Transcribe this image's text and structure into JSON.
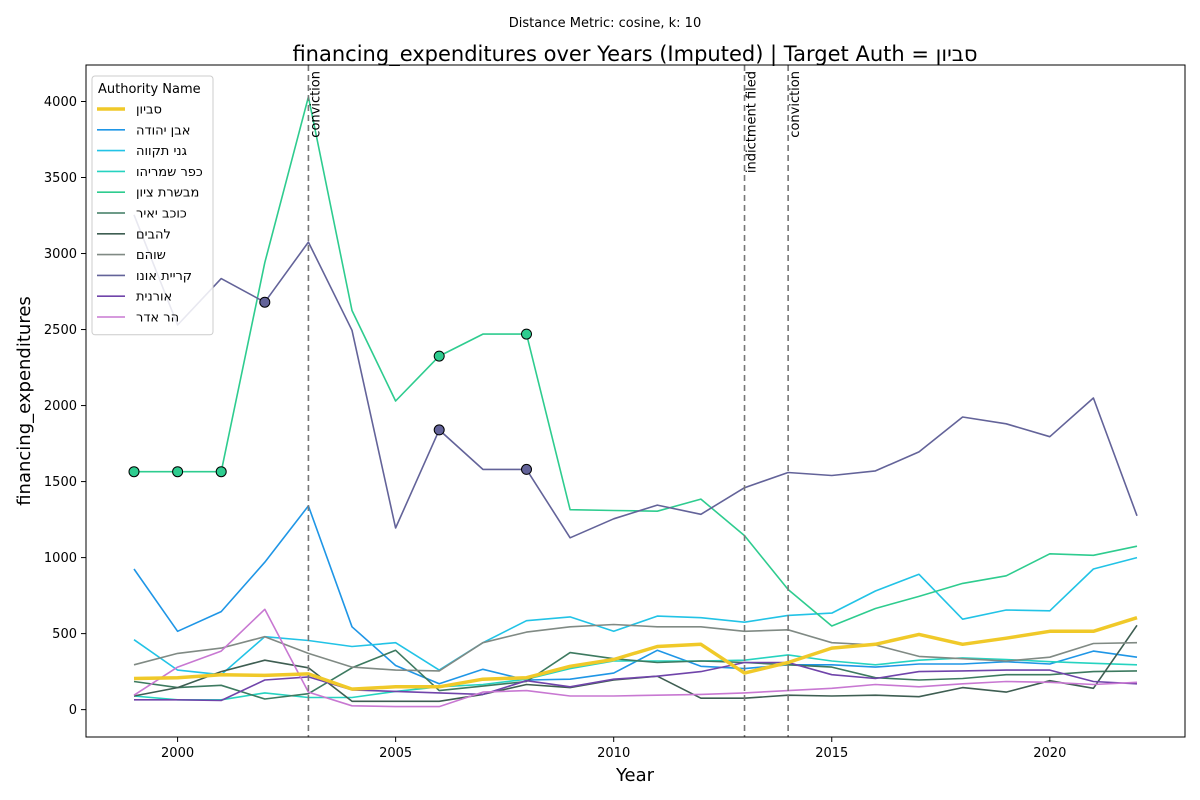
{
  "chart_data": {
    "type": "line",
    "suptitle": "Distance Metric: cosine, k: 10",
    "title": "financing_expenditures over Years (Imputed) | Target Auth = סביון",
    "xlabel": "Year",
    "ylabel": "financing_expenditures",
    "xlim": [
      1997.9,
      2023.1
    ],
    "ylim": [
      -180,
      4240
    ],
    "xticks": [
      2000,
      2005,
      2010,
      2015,
      2020
    ],
    "yticks": [
      0,
      500,
      1000,
      1500,
      2000,
      2500,
      3000,
      3500,
      4000
    ],
    "grid": false,
    "legend": {
      "title": "Authority Name",
      "placement": "upper left"
    },
    "x": [
      1999,
      2000,
      2001,
      2002,
      2003,
      2004,
      2005,
      2006,
      2007,
      2008,
      2009,
      2010,
      2011,
      2012,
      2013,
      2014,
      2015,
      2016,
      2017,
      2018,
      2019,
      2020,
      2021,
      2022
    ],
    "series": [
      {
        "name": "סביון",
        "color": "#f0c929",
        "target": true,
        "values": [
          205,
          210,
          230,
          225,
          235,
          135,
          150,
          150,
          200,
          210,
          285,
          330,
          415,
          430,
          240,
          310,
          405,
          430,
          495,
          430,
          470,
          515,
          515,
          605
        ]
      },
      {
        "name": "אבן יהודה",
        "color": "#1f96e6",
        "target": false,
        "values": [
          925,
          515,
          645,
          970,
          1340,
          545,
          290,
          170,
          265,
          195,
          200,
          240,
          390,
          285,
          270,
          295,
          295,
          280,
          300,
          300,
          315,
          300,
          385,
          345
        ]
      },
      {
        "name": "גני תקווה",
        "color": "#22c3e6",
        "target": false,
        "values": [
          460,
          260,
          230,
          480,
          455,
          415,
          440,
          260,
          440,
          585,
          610,
          515,
          615,
          605,
          575,
          620,
          635,
          780,
          890,
          595,
          655,
          650,
          925,
          1000
        ]
      },
      {
        "name": "כפר שמריהו",
        "color": "#26d3c0",
        "target": false,
        "values": [
          90,
          65,
          65,
          110,
          80,
          80,
          120,
          150,
          165,
          200,
          270,
          320,
          320,
          320,
          325,
          360,
          320,
          295,
          325,
          340,
          330,
          315,
          305,
          295
        ]
      },
      {
        "name": "מבשרת ציון",
        "color": "#2ecc8f",
        "target": false,
        "values": [
          1565,
          1565,
          1565,
          2940,
          4030,
          2625,
          2030,
          2325,
          2470,
          2470,
          1315,
          1310,
          1305,
          1385,
          1145,
          790,
          550,
          665,
          745,
          830,
          880,
          1025,
          1015,
          1075
        ]
      },
      {
        "name": "כוכב יאיר",
        "color": "#3d7a60",
        "target": false,
        "values": [
          185,
          145,
          160,
          70,
          105,
          275,
          390,
          125,
          155,
          185,
          375,
          335,
          310,
          320,
          310,
          295,
          280,
          210,
          195,
          205,
          230,
          230,
          250,
          255
        ]
      },
      {
        "name": "להבים",
        "color": "#3e5e52",
        "target": false,
        "values": [
          90,
          145,
          250,
          325,
          275,
          55,
          55,
          55,
          100,
          165,
          145,
          195,
          220,
          75,
          75,
          95,
          90,
          95,
          85,
          145,
          115,
          190,
          140,
          555
        ]
      },
      {
        "name": "שוהם",
        "color": "#808a84",
        "target": false,
        "values": [
          295,
          370,
          405,
          480,
          370,
          280,
          260,
          255,
          440,
          510,
          545,
          560,
          545,
          545,
          515,
          525,
          440,
          425,
          350,
          335,
          320,
          345,
          435,
          440
        ]
      },
      {
        "name": "קריית אונו",
        "color": "#636399",
        "target": false,
        "values": [
          3255,
          2530,
          2835,
          2680,
          3075,
          2495,
          1195,
          1840,
          1580,
          1580,
          1130,
          1255,
          1345,
          1285,
          1460,
          1560,
          1540,
          1570,
          1695,
          1925,
          1880,
          1795,
          2050,
          1275
        ]
      },
      {
        "name": "אורנית",
        "color": "#7044aa",
        "target": false,
        "values": [
          65,
          65,
          60,
          195,
          215,
          130,
          120,
          110,
          100,
          190,
          150,
          200,
          220,
          250,
          310,
          310,
          230,
          205,
          250,
          255,
          260,
          260,
          185,
          170
        ]
      },
      {
        "name": "הר אדר",
        "color": "#c878d2",
        "target": false,
        "values": [
          95,
          280,
          385,
          660,
          115,
          25,
          20,
          20,
          115,
          125,
          90,
          90,
          95,
          100,
          110,
          125,
          140,
          165,
          150,
          170,
          185,
          180,
          165,
          180
        ]
      }
    ],
    "imputed_markers": [
      {
        "series": "מבשרת ציון",
        "points": [
          [
            1999,
            1565
          ],
          [
            2000,
            1565
          ],
          [
            2001,
            1565
          ],
          [
            2006,
            2325
          ],
          [
            2008,
            2470
          ]
        ]
      },
      {
        "series": "קריית אונו",
        "points": [
          [
            2002,
            2680
          ],
          [
            2006,
            1840
          ],
          [
            2008,
            1580
          ]
        ]
      }
    ],
    "events": [
      {
        "year": 2003,
        "label": "conviction"
      },
      {
        "year": 2013,
        "label": "indictment filed"
      },
      {
        "year": 2014,
        "label": "conviction"
      }
    ]
  }
}
